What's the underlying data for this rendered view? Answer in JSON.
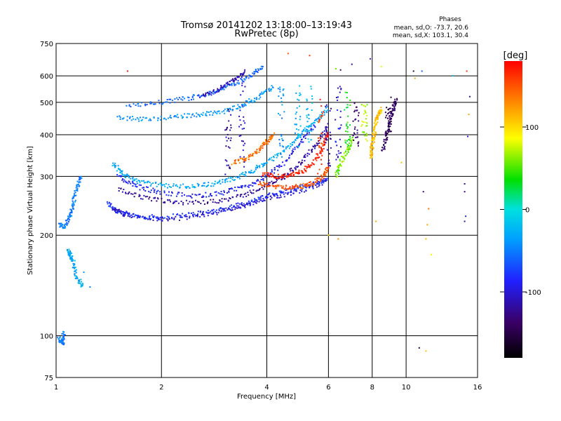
{
  "chart_data": {
    "type": "scatter",
    "title": "Tromsø 20141202 13:18:00–13:19:43",
    "subtitle": "RwPretec (8p)",
    "stats": {
      "heading": "Phases",
      "line1": "mean, sd,O: -73.7, 20.6",
      "line2": "mean, sd,X: 103.1, 30.4"
    },
    "xlabel": "Frequency [MHz]",
    "ylabel": "Stationary phase Virtual Height [km]",
    "xscale": "log",
    "yscale": "log",
    "xlim": [
      1,
      16
    ],
    "ylim": [
      75,
      750
    ],
    "xticks": [
      1,
      2,
      4,
      6,
      8,
      10,
      16
    ],
    "yticks": [
      75,
      100,
      200,
      300,
      400,
      500,
      600,
      750
    ],
    "grid": true,
    "colorbar": {
      "label": "[deg]",
      "range": [
        -180,
        180
      ],
      "ticks": [
        100,
        0,
        -100
      ],
      "colors": [
        "#000000",
        "#3a0066",
        "#2020ff",
        "#00a0ff",
        "#00e0e0",
        "#00e000",
        "#ffff00",
        "#ff8000",
        "#ff0000"
      ]
    },
    "series": [
      {
        "kind": "trace",
        "phase": -80,
        "points": [
          [
            1.4,
            250
          ],
          [
            1.5,
            235
          ],
          [
            1.7,
            228
          ],
          [
            2.0,
            226
          ],
          [
            2.5,
            232
          ],
          [
            3.0,
            240
          ],
          [
            3.5,
            250
          ],
          [
            4.0,
            262
          ],
          [
            4.5,
            270
          ],
          [
            5.0,
            278
          ],
          [
            5.5,
            285
          ],
          [
            6.0,
            295
          ]
        ]
      },
      {
        "kind": "trace",
        "phase": -100,
        "points": [
          [
            1.45,
            240
          ],
          [
            1.6,
            230
          ],
          [
            2.0,
            222
          ],
          [
            2.5,
            228
          ],
          [
            3.0,
            236
          ],
          [
            3.5,
            246
          ],
          [
            4.0,
            256
          ],
          [
            5.0,
            272
          ],
          [
            6.0,
            290
          ]
        ]
      },
      {
        "kind": "trace",
        "phase": -30,
        "points": [
          [
            1.45,
            330
          ],
          [
            1.55,
            305
          ],
          [
            1.7,
            290
          ],
          [
            2.0,
            282
          ],
          [
            2.4,
            280
          ],
          [
            2.8,
            285
          ],
          [
            3.2,
            295
          ],
          [
            3.6,
            310
          ],
          [
            4.0,
            330
          ],
          [
            4.5,
            360
          ],
          [
            5.0,
            400
          ],
          [
            5.5,
            440
          ],
          [
            6.0,
            480
          ]
        ]
      },
      {
        "kind": "trace",
        "phase": -90,
        "points": [
          [
            1.5,
            300
          ],
          [
            1.7,
            280
          ],
          [
            2.0,
            268
          ],
          [
            2.5,
            262
          ],
          [
            3.0,
            268
          ],
          [
            3.5,
            280
          ],
          [
            4.0,
            300
          ],
          [
            4.5,
            330
          ],
          [
            5.0,
            380
          ],
          [
            5.5,
            430
          ]
        ]
      },
      {
        "kind": "trace",
        "phase": -120,
        "points": [
          [
            1.5,
            275
          ],
          [
            1.8,
            258
          ],
          [
            2.2,
            250
          ],
          [
            2.8,
            252
          ],
          [
            3.4,
            262
          ],
          [
            4.0,
            282
          ],
          [
            4.5,
            300
          ],
          [
            5.0,
            330
          ],
          [
            5.5,
            370
          ],
          [
            6.0,
            420
          ]
        ]
      },
      {
        "kind": "trace",
        "phase": 150,
        "points": [
          [
            3.8,
            285
          ],
          [
            4.2,
            280
          ],
          [
            4.6,
            278
          ],
          [
            5.0,
            280
          ],
          [
            5.4,
            285
          ],
          [
            5.8,
            300
          ],
          [
            6.0,
            320
          ]
        ]
      },
      {
        "kind": "trace",
        "phase": 170,
        "points": [
          [
            3.9,
            305
          ],
          [
            4.3,
            300
          ],
          [
            4.7,
            303
          ],
          [
            5.1,
            312
          ],
          [
            5.5,
            335
          ],
          [
            5.8,
            370
          ],
          [
            6.0,
            410
          ]
        ]
      },
      {
        "kind": "trace",
        "phase": 140,
        "points": [
          [
            3.2,
            330
          ],
          [
            3.5,
            340
          ],
          [
            3.8,
            360
          ],
          [
            4.0,
            380
          ],
          [
            4.2,
            400
          ]
        ]
      },
      {
        "kind": "trace",
        "phase": -40,
        "points": [
          [
            1.5,
            450
          ],
          [
            1.8,
            445
          ],
          [
            2.2,
            452
          ],
          [
            2.6,
            460
          ],
          [
            3.0,
            470
          ],
          [
            3.4,
            490
          ],
          [
            3.8,
            520
          ],
          [
            4.2,
            560
          ]
        ]
      },
      {
        "kind": "trace",
        "phase": -60,
        "points": [
          [
            1.6,
            485
          ],
          [
            2.0,
            500
          ],
          [
            2.4,
            515
          ],
          [
            2.8,
            535
          ],
          [
            3.2,
            565
          ],
          [
            3.6,
            600
          ],
          [
            3.9,
            640
          ]
        ]
      },
      {
        "kind": "trace",
        "phase": -110,
        "points": [
          [
            2.6,
            520
          ],
          [
            2.9,
            545
          ],
          [
            3.2,
            580
          ],
          [
            3.5,
            620
          ]
        ]
      },
      {
        "kind": "trace",
        "phase": 110,
        "points": [
          [
            7.9,
            340
          ],
          [
            8.0,
            370
          ],
          [
            8.1,
            400
          ],
          [
            8.2,
            430
          ],
          [
            8.3,
            460
          ],
          [
            8.5,
            480
          ]
        ]
      },
      {
        "kind": "trace",
        "phase": -140,
        "points": [
          [
            8.6,
            360
          ],
          [
            8.8,
            400
          ],
          [
            9.0,
            440
          ],
          [
            9.2,
            480
          ],
          [
            9.4,
            510
          ]
        ]
      },
      {
        "kind": "trace",
        "phase": 60,
        "points": [
          [
            6.3,
            300
          ],
          [
            6.5,
            330
          ],
          [
            6.8,
            360
          ],
          [
            7.0,
            390
          ]
        ]
      },
      {
        "kind": "trace",
        "phase": -50,
        "points": [
          [
            1.02,
            215
          ],
          [
            1.06,
            212
          ],
          [
            1.1,
            230
          ],
          [
            1.12,
            250
          ],
          [
            1.15,
            280
          ],
          [
            1.18,
            300
          ]
        ]
      },
      {
        "kind": "trace",
        "phase": -30,
        "points": [
          [
            1.08,
            180
          ],
          [
            1.1,
            175
          ],
          [
            1.12,
            168
          ],
          [
            1.14,
            150
          ],
          [
            1.2,
            140
          ]
        ]
      },
      {
        "kind": "trace",
        "phase": -50,
        "points": [
          [
            1.02,
            98
          ],
          [
            1.05,
            95
          ],
          [
            1.05,
            103
          ]
        ]
      }
    ],
    "scattered": [
      [
        10.5,
        620,
        -150
      ],
      [
        10.6,
        590,
        120
      ],
      [
        11.1,
        620,
        -60
      ],
      [
        13.6,
        600,
        -20
      ],
      [
        14.9,
        620,
        160
      ],
      [
        15.2,
        520,
        -120
      ],
      [
        15.1,
        460,
        120
      ],
      [
        15.0,
        395,
        -100
      ],
      [
        14.7,
        285,
        -120
      ],
      [
        14.7,
        270,
        -130
      ],
      [
        14.8,
        228,
        -90
      ],
      [
        14.7,
        220,
        -120
      ],
      [
        11.2,
        270,
        -130
      ],
      [
        11.6,
        240,
        140
      ],
      [
        11.5,
        215,
        120
      ],
      [
        11.4,
        195,
        110
      ],
      [
        11.8,
        175,
        90
      ],
      [
        10.9,
        92,
        -150
      ],
      [
        11.4,
        90,
        110
      ],
      [
        4.6,
        700,
        150
      ],
      [
        5.3,
        690,
        160
      ],
      [
        6.3,
        630,
        60
      ],
      [
        6.5,
        625,
        -140
      ],
      [
        7.0,
        650,
        -120
      ],
      [
        7.9,
        675,
        -90
      ],
      [
        8.5,
        640,
        80
      ],
      [
        6.0,
        200,
        100
      ],
      [
        6.4,
        195,
        130
      ],
      [
        8.2,
        220,
        120
      ],
      [
        9.7,
        330,
        110
      ],
      [
        1.6,
        620,
        170
      ],
      [
        1.2,
        155,
        -40
      ],
      [
        1.25,
        140,
        -50
      ]
    ]
  }
}
